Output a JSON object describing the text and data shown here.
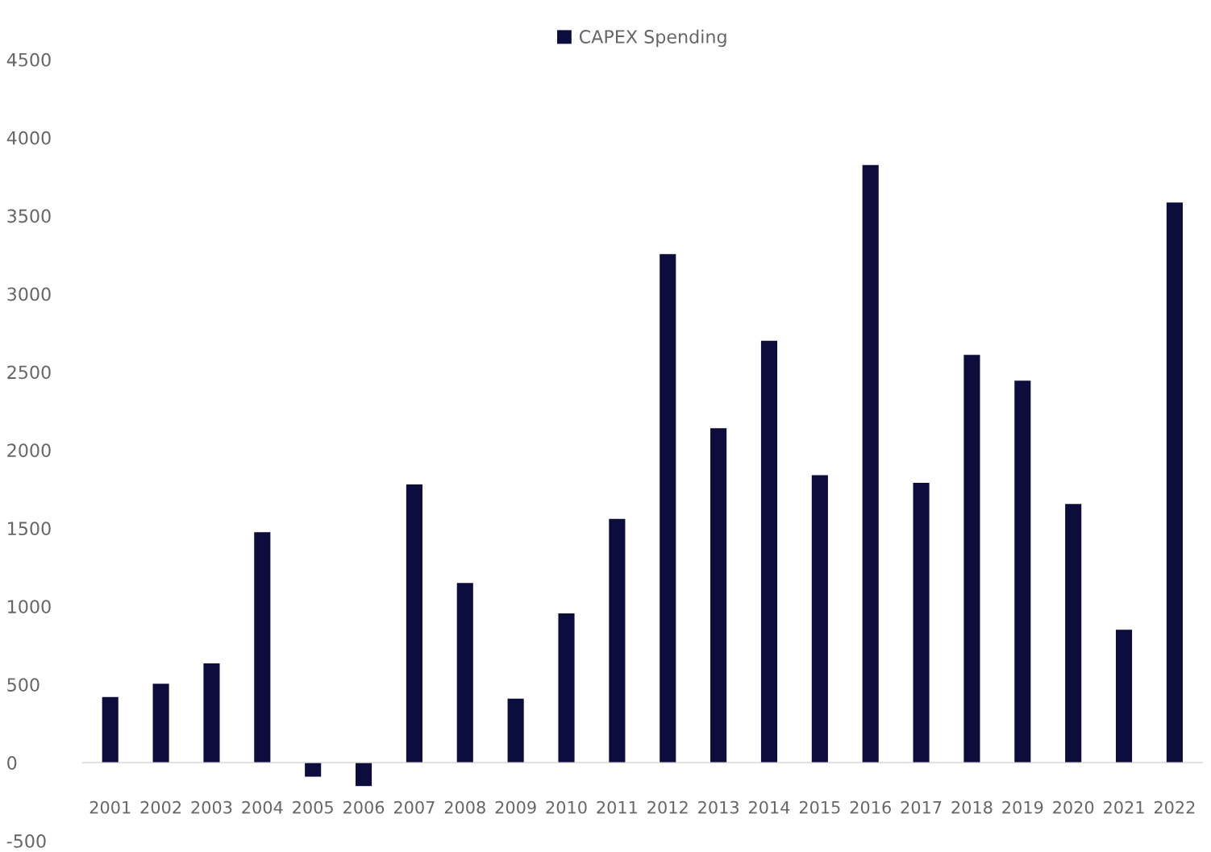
{
  "chart_data": {
    "type": "bar",
    "categories": [
      "2001",
      "2002",
      "2003",
      "2004",
      "2005",
      "2006",
      "2007",
      "2008",
      "2009",
      "2010",
      "2011",
      "2012",
      "2013",
      "2014",
      "2015",
      "2016",
      "2017",
      "2018",
      "2019",
      "2020",
      "2021",
      "2022"
    ],
    "series": [
      {
        "name": "CAPEX Spending",
        "color": "#0d0d3d",
        "values": [
          420,
          505,
          635,
          1475,
          -90,
          -150,
          1780,
          1150,
          410,
          955,
          1560,
          3255,
          2140,
          2700,
          1840,
          3825,
          1790,
          2610,
          2445,
          1655,
          850,
          3585
        ]
      }
    ],
    "ylim": [
      -500,
      4500
    ],
    "yticks": [
      -500,
      0,
      500,
      1000,
      1500,
      2000,
      2500,
      3000,
      3500,
      4000,
      4500
    ],
    "grid": false,
    "legend": "top"
  }
}
